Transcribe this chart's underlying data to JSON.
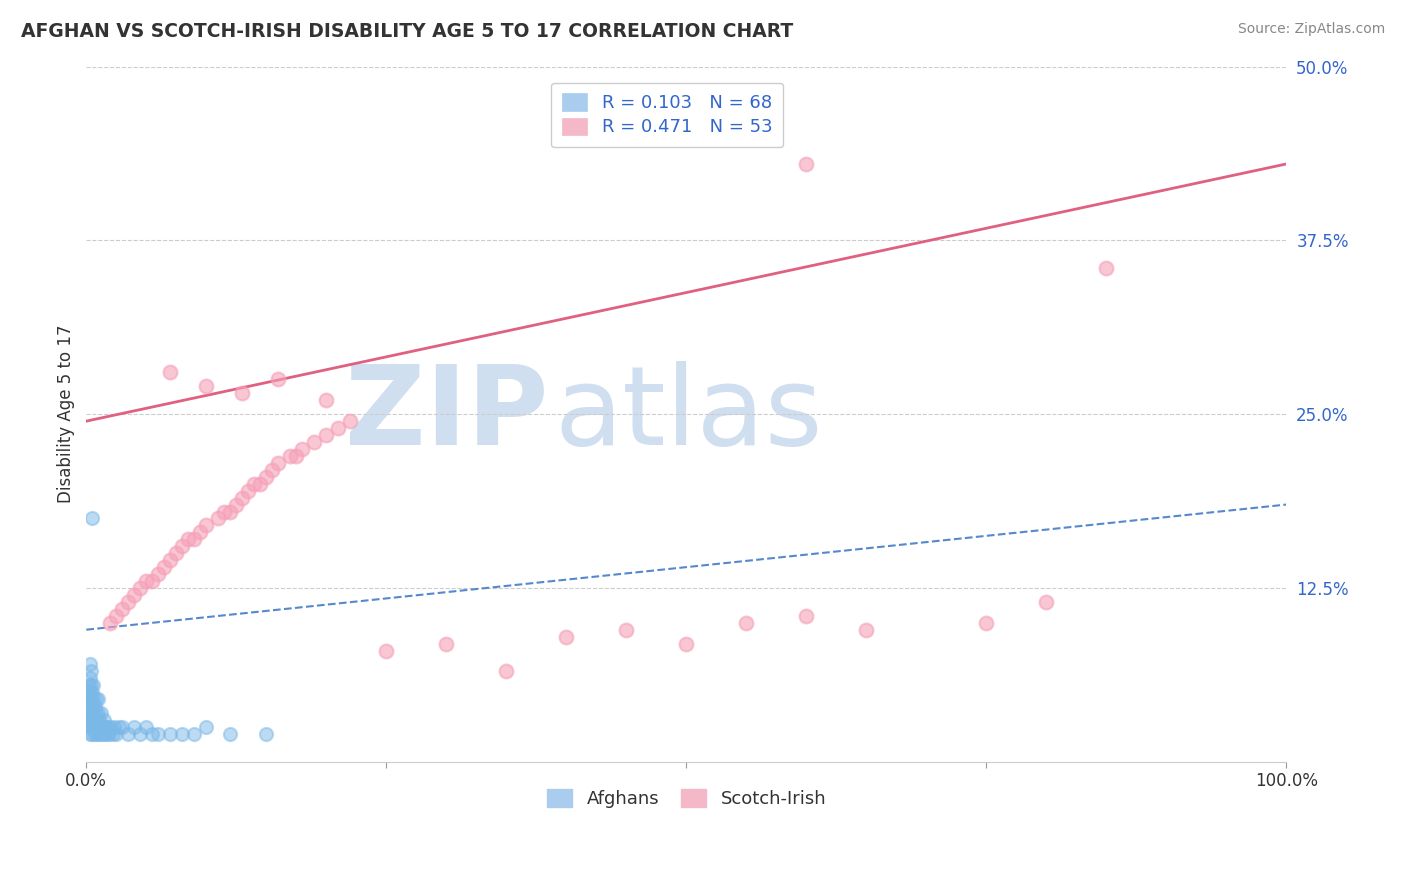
{
  "title": "AFGHAN VS SCOTCH-IRISH DISABILITY AGE 5 TO 17 CORRELATION CHART",
  "source_text": "Source: ZipAtlas.com",
  "ylabel": "Disability Age 5 to 17",
  "R_afghan": 0.103,
  "N_afghan": 68,
  "R_scotch": 0.471,
  "N_scotch": 53,
  "afghan_color": "#7ab8e8",
  "scotch_color": "#f5a0b8",
  "afghan_line_color": "#5588cc",
  "scotch_line_color": "#e06080",
  "text_blue": "#3366cc",
  "background_color": "#ffffff",
  "grid_color": "#cccccc",
  "watermark_color": "#d0dff0",
  "scotch_line_y_start": 0.245,
  "scotch_line_y_end": 0.43,
  "afghan_line_y_start": 0.095,
  "afghan_line_y_end": 0.185,
  "afghan_x": [
    0.001,
    0.001,
    0.001,
    0.002,
    0.002,
    0.002,
    0.002,
    0.003,
    0.003,
    0.003,
    0.003,
    0.003,
    0.003,
    0.004,
    0.004,
    0.004,
    0.004,
    0.004,
    0.005,
    0.005,
    0.005,
    0.005,
    0.006,
    0.006,
    0.006,
    0.006,
    0.007,
    0.007,
    0.007,
    0.008,
    0.008,
    0.008,
    0.009,
    0.009,
    0.01,
    0.01,
    0.01,
    0.011,
    0.011,
    0.012,
    0.012,
    0.013,
    0.014,
    0.015,
    0.015,
    0.016,
    0.017,
    0.018,
    0.019,
    0.02,
    0.022,
    0.023,
    0.025,
    0.027,
    0.03,
    0.035,
    0.04,
    0.045,
    0.05,
    0.055,
    0.06,
    0.07,
    0.08,
    0.09,
    0.1,
    0.12,
    0.005,
    0.15
  ],
  "afghan_y": [
    0.03,
    0.04,
    0.05,
    0.025,
    0.035,
    0.045,
    0.055,
    0.02,
    0.03,
    0.04,
    0.05,
    0.06,
    0.07,
    0.025,
    0.035,
    0.045,
    0.055,
    0.065,
    0.02,
    0.03,
    0.04,
    0.05,
    0.025,
    0.035,
    0.045,
    0.055,
    0.02,
    0.03,
    0.04,
    0.025,
    0.035,
    0.045,
    0.02,
    0.03,
    0.025,
    0.035,
    0.045,
    0.02,
    0.03,
    0.025,
    0.035,
    0.02,
    0.025,
    0.02,
    0.03,
    0.025,
    0.02,
    0.025,
    0.02,
    0.025,
    0.02,
    0.025,
    0.02,
    0.025,
    0.025,
    0.02,
    0.025,
    0.02,
    0.025,
    0.02,
    0.02,
    0.02,
    0.02,
    0.02,
    0.025,
    0.02,
    0.175,
    0.02
  ],
  "scotch_x": [
    0.02,
    0.025,
    0.03,
    0.035,
    0.04,
    0.045,
    0.05,
    0.055,
    0.06,
    0.065,
    0.07,
    0.075,
    0.08,
    0.085,
    0.09,
    0.095,
    0.1,
    0.11,
    0.115,
    0.12,
    0.125,
    0.13,
    0.135,
    0.14,
    0.145,
    0.15,
    0.155,
    0.16,
    0.17,
    0.175,
    0.18,
    0.19,
    0.2,
    0.21,
    0.22,
    0.07,
    0.1,
    0.13,
    0.16,
    0.2,
    0.25,
    0.3,
    0.35,
    0.4,
    0.45,
    0.5,
    0.55,
    0.6,
    0.65,
    0.75,
    0.8,
    0.6,
    0.85
  ],
  "scotch_y": [
    0.1,
    0.105,
    0.11,
    0.115,
    0.12,
    0.125,
    0.13,
    0.13,
    0.135,
    0.14,
    0.145,
    0.15,
    0.155,
    0.16,
    0.16,
    0.165,
    0.17,
    0.175,
    0.18,
    0.18,
    0.185,
    0.19,
    0.195,
    0.2,
    0.2,
    0.205,
    0.21,
    0.215,
    0.22,
    0.22,
    0.225,
    0.23,
    0.235,
    0.24,
    0.245,
    0.28,
    0.27,
    0.265,
    0.275,
    0.26,
    0.08,
    0.085,
    0.065,
    0.09,
    0.095,
    0.085,
    0.1,
    0.105,
    0.095,
    0.1,
    0.115,
    0.43,
    0.355
  ],
  "xlim": [
    0.0,
    1.0
  ],
  "ylim": [
    0.0,
    0.5
  ]
}
